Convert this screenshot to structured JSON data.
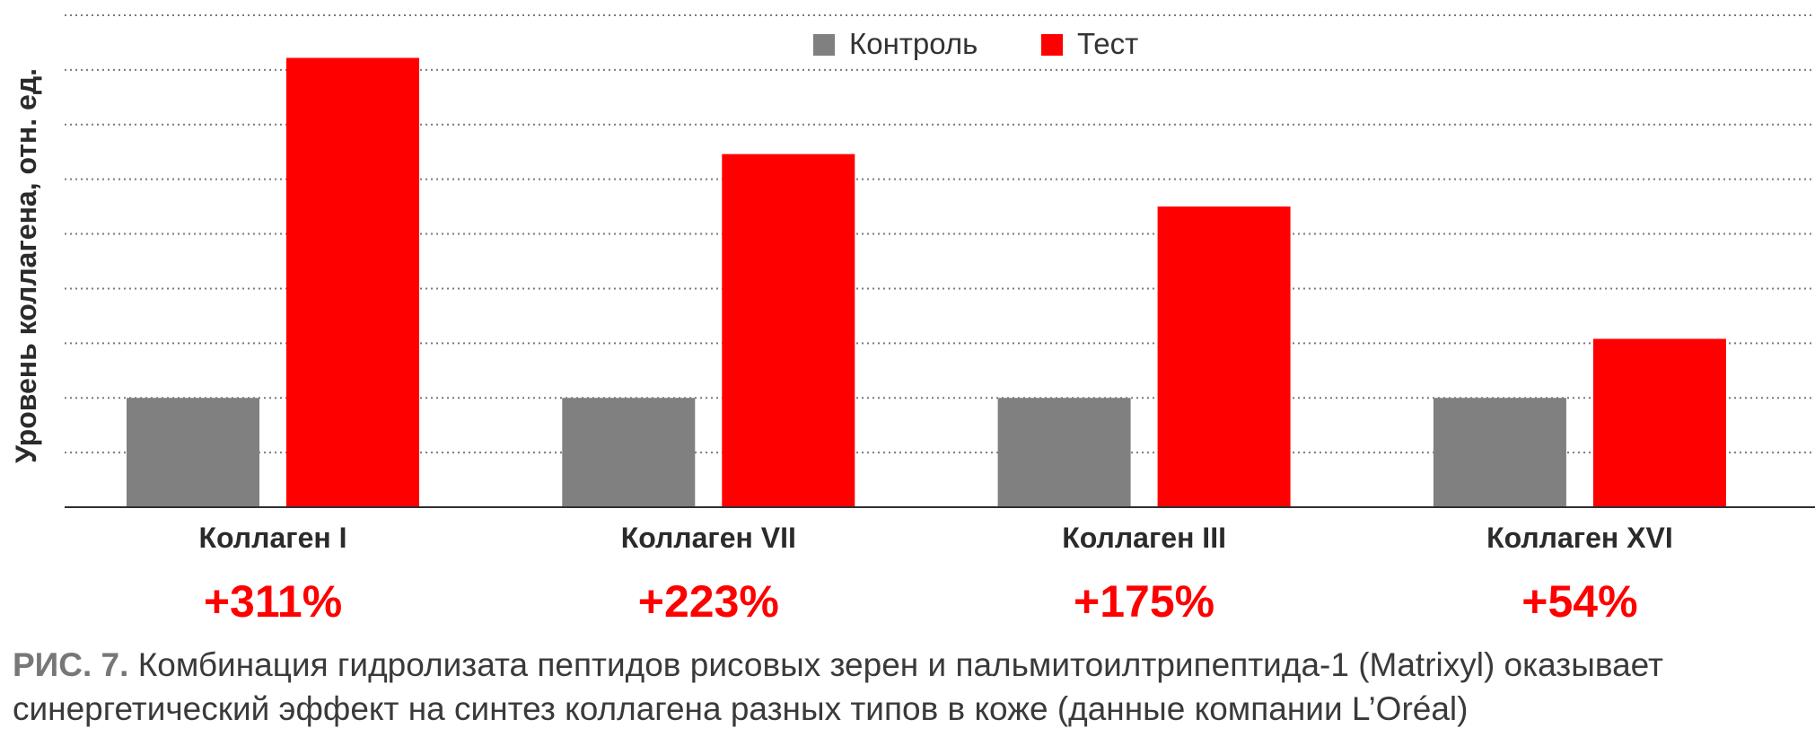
{
  "chart_data": {
    "type": "bar",
    "ylabel": "Уровень коллагена, отн. ед.",
    "xlabel": "",
    "categories": [
      "Коллаген I",
      "Коллаген VII",
      "Коллаген III",
      "Коллаген XVI"
    ],
    "series": [
      {
        "name": "Контроль",
        "color": "#808080",
        "values": [
          1.0,
          1.0,
          1.0,
          1.0
        ]
      },
      {
        "name": "Тест",
        "color": "#ff0000",
        "values": [
          4.11,
          3.23,
          2.75,
          1.54
        ]
      }
    ],
    "annotations": [
      "+311%",
      "+223%",
      "+175%",
      "+54%"
    ],
    "annotation_color": "#ff0000",
    "ylim": [
      0,
      4.5
    ],
    "grid": "horizontal-dotted",
    "y_tick_labels_shown": false,
    "legend": "top-center"
  },
  "caption": {
    "label": "РИС. 7.",
    "text": " Комбинация гидролизата пептидов рисовых зерен и пальмитоилтрипептида-1 (Matrixyl) оказывает синергетический эффект на синтез коллагена разных типов в коже (данные компании L’Oréal)"
  }
}
